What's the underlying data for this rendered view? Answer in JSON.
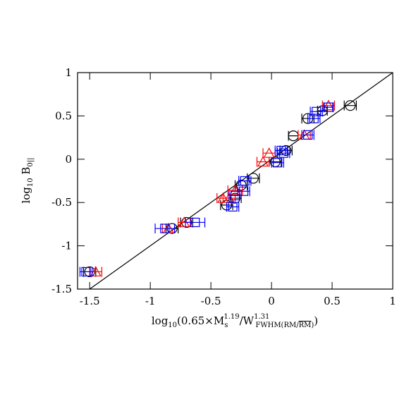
{
  "chart_data": {
    "type": "scatter",
    "xlabel": {
      "pre": "log",
      "pre_sub": "10",
      "a": "(0.65×M",
      "a_sub": "s",
      "a_sup": "1.19",
      "b": "/W",
      "b_sup": "1.31",
      "b_sub1": "FWHM(RM/",
      "b_sub2": "RM",
      "b_sub3": ")",
      "c": ")"
    },
    "ylabel": {
      "pre": "log",
      "pre_sub": "10",
      "a": " B",
      "a_sub": "0||"
    },
    "xlim": [
      -1.6,
      1
    ],
    "ylim": [
      -1.5,
      1
    ],
    "xticks": [
      -1.5,
      -1,
      -0.5,
      0,
      0.5,
      1
    ],
    "yticks": [
      -1.5,
      -1,
      -0.5,
      0,
      0.5,
      1
    ],
    "reference_line": {
      "x": [
        -1.5,
        1
      ],
      "y": [
        -1.5,
        1
      ],
      "color": "#000000"
    },
    "series": [
      {
        "color": "#000000",
        "marker": "circle",
        "x": [
          0.65,
          0.3,
          0.42,
          0.18,
          0.12,
          0.03,
          -0.15,
          -0.25,
          -0.3,
          -0.37,
          -0.7,
          -0.82,
          -1.5
        ],
        "values": [
          0.62,
          0.47,
          0.56,
          0.27,
          0.1,
          -0.03,
          -0.22,
          -0.3,
          -0.45,
          -0.53,
          -0.73,
          -0.8,
          -1.3
        ],
        "xerr": [
          0.05,
          0.05,
          0.04,
          0.04,
          0.05,
          0.05,
          0.05,
          0.05,
          0.05,
          0.05,
          0.05,
          0.05,
          0.05
        ]
      },
      {
        "color": "#ff0000",
        "marker": "triangle",
        "x": [
          0.47,
          0.27,
          -0.07,
          -0.02,
          -0.3,
          -0.35,
          -0.4,
          -0.72,
          -0.85,
          -1.45
        ],
        "values": [
          0.62,
          0.28,
          -0.03,
          0.07,
          -0.36,
          -0.45,
          -0.45,
          -0.73,
          -0.8,
          -1.3
        ],
        "xerr": [
          0.05,
          0.05,
          0.05,
          0.05,
          0.06,
          0.05,
          0.05,
          0.05,
          0.05,
          0.05
        ]
      },
      {
        "color": "#0000ff",
        "marker": "square",
        "x": [
          0.47,
          0.37,
          0.35,
          0.3,
          0.08,
          0.1,
          0.05,
          -0.22,
          -0.23,
          -0.3,
          -0.32,
          -0.63,
          -0.88,
          -1.53
        ],
        "values": [
          0.6,
          0.55,
          0.47,
          0.28,
          0.1,
          0.07,
          -0.04,
          -0.25,
          -0.37,
          -0.42,
          -0.55,
          -0.73,
          -0.8,
          -1.3
        ],
        "xerr": [
          0.04,
          0.05,
          0.05,
          0.05,
          0.05,
          0.05,
          0.05,
          0.05,
          0.05,
          0.05,
          0.05,
          0.08,
          0.08,
          0.05
        ]
      }
    ]
  }
}
